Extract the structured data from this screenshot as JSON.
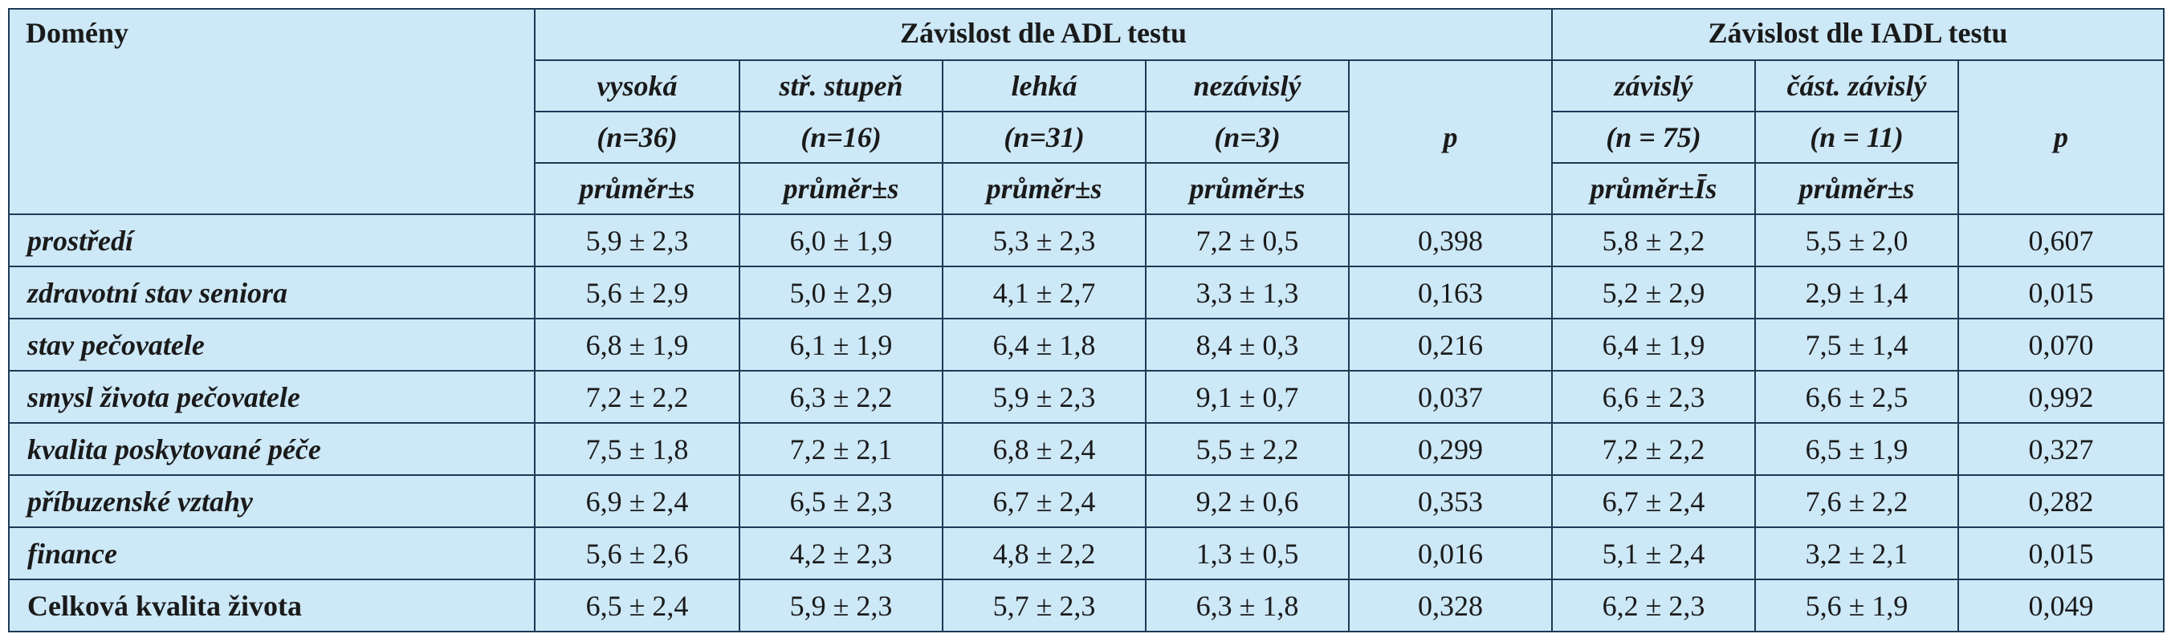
{
  "headers": {
    "domains": "Domény",
    "adl_group": "Závislost dle ADL testu",
    "iadl_group": "Závislost dle IADL testu",
    "p_label": "p",
    "adl_columns": [
      {
        "name": "vysoká",
        "n": "(n=36)",
        "stat": "průměr±s"
      },
      {
        "name": "stř. stupeň",
        "n": "(n=16)",
        "stat": "průměr±s"
      },
      {
        "name": "lehká",
        "n": "(n=31)",
        "stat": "průměr±s"
      },
      {
        "name": "nezávislý",
        "n": "(n=3)",
        "stat": "průměr±s"
      }
    ],
    "iadl_columns": [
      {
        "name": "závislý",
        "n": "(n = 75)",
        "stat": "průměr±Īs"
      },
      {
        "name": "část. závislý",
        "n": "(n = 11)",
        "stat": "průměr±s"
      }
    ]
  },
  "rows": [
    {
      "domain": "prostředí",
      "adl": [
        "5,9 ± 2,3",
        "6,0 ± 1,9",
        "5,3 ± 2,3",
        "7,2 ± 0,5"
      ],
      "p_adl": "0,398",
      "iadl": [
        "5,8 ± 2,2",
        "5,5 ± 2,0"
      ],
      "p_iadl": "0,607"
    },
    {
      "domain": "zdravotní stav seniora",
      "adl": [
        "5,6 ± 2,9",
        "5,0 ± 2,9",
        "4,1 ± 2,7",
        "3,3 ± 1,3"
      ],
      "p_adl": "0,163",
      "iadl": [
        "5,2 ± 2,9",
        "2,9 ± 1,4"
      ],
      "p_iadl": "0,015"
    },
    {
      "domain": "stav pečovatele",
      "adl": [
        "6,8 ± 1,9",
        "6,1 ± 1,9",
        "6,4 ± 1,8",
        "8,4 ± 0,3"
      ],
      "p_adl": "0,216",
      "iadl": [
        "6,4 ± 1,9",
        "7,5 ± 1,4"
      ],
      "p_iadl": "0,070"
    },
    {
      "domain": "smysl života pečovatele",
      "adl": [
        "7,2 ± 2,2",
        "6,3 ± 2,2",
        "5,9 ± 2,3",
        "9,1 ± 0,7"
      ],
      "p_adl": "0,037",
      "iadl": [
        "6,6 ± 2,3",
        "6,6 ± 2,5"
      ],
      "p_iadl": "0,992"
    },
    {
      "domain": "kvalita poskytované péče",
      "adl": [
        "7,5 ± 1,8",
        "7,2 ± 2,1",
        "6,8 ± 2,4",
        "5,5 ± 2,2"
      ],
      "p_adl": "0,299",
      "iadl": [
        "7,2 ± 2,2",
        "6,5 ± 1,9"
      ],
      "p_iadl": "0,327"
    },
    {
      "domain": "příbuzenské vztahy",
      "adl": [
        "6,9 ± 2,4",
        "6,5 ± 2,3",
        "6,7 ± 2,4",
        "9,2 ± 0,6"
      ],
      "p_adl": "0,353",
      "iadl": [
        "6,7 ± 2,4",
        "7,6 ± 2,2"
      ],
      "p_iadl": "0,282"
    },
    {
      "domain": "finance",
      "adl": [
        "5,6 ± 2,6",
        "4,2 ± 2,3",
        "4,8 ± 2,2",
        "1,3 ± 0,5"
      ],
      "p_adl": "0,016",
      "iadl": [
        "5,1 ± 2,4",
        "3,2 ± 2,1"
      ],
      "p_iadl": "0,015"
    },
    {
      "domain": "Celková kvalita života",
      "adl": [
        "6,5 ± 2,4",
        "5,9 ± 2,3",
        "5,7 ± 2,3",
        "6,3 ± 1,8"
      ],
      "p_adl": "0,328",
      "iadl": [
        "6,2 ± 2,3",
        "5,6 ± 1,9"
      ],
      "p_iadl": "0,049"
    }
  ]
}
